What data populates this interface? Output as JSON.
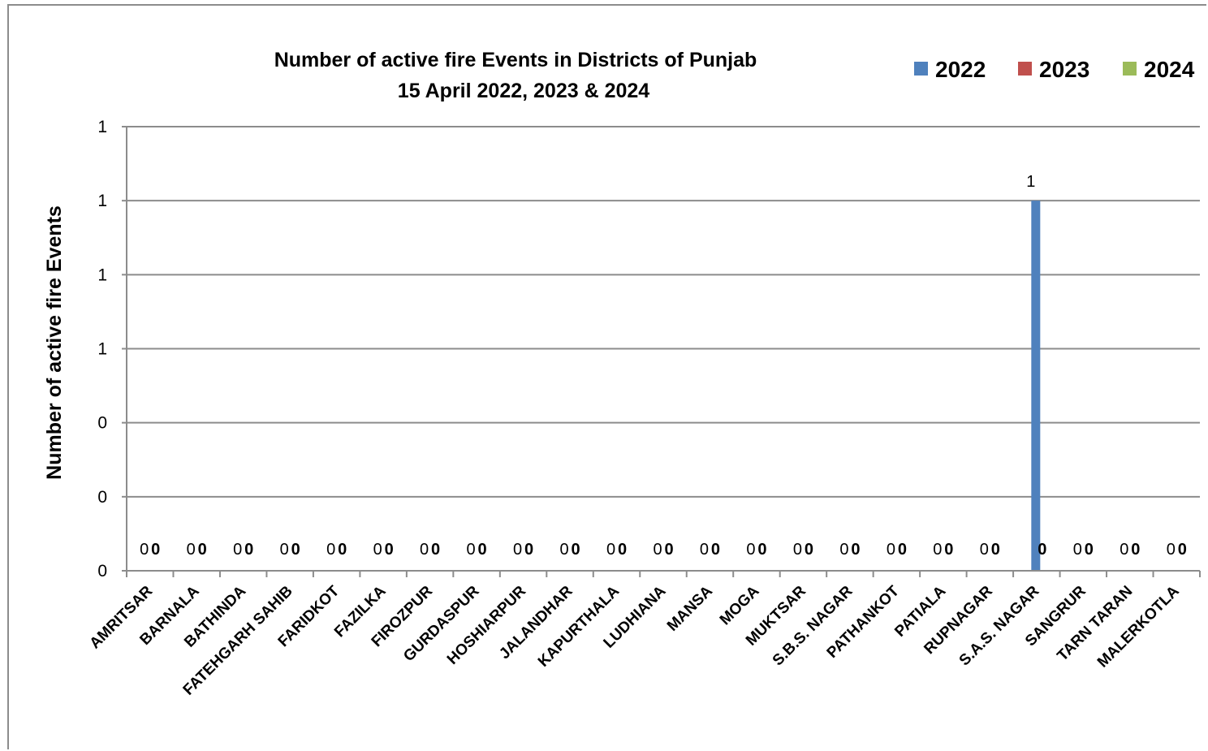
{
  "chart_data": {
    "type": "bar",
    "title": "Number of active fire Events in Districts of Punjab",
    "subtitle": "15 April 2022, 2023 & 2024",
    "ylabel": "Number of active fire Events",
    "xlabel": "",
    "y_tick_labels": [
      "0",
      "0",
      "0",
      "1",
      "1",
      "1",
      "1"
    ],
    "ylim": [
      0,
      1.2
    ],
    "grid": true,
    "legend_position": "top-right",
    "categories": [
      "AMRITSAR",
      "BARNALA",
      "BATHINDA",
      "FATEHGARH SAHIB",
      "FARIDKOT",
      "FAZILKA",
      "FIROZPUR",
      "GURDASPUR",
      "HOSHIARPUR",
      "JALANDHAR",
      "KAPURTHALA",
      "LUDHIANA",
      "MANSA",
      "MOGA",
      "MUKTSAR",
      "S.B.S. NAGAR",
      "PATHANKOT",
      "PATIALA",
      "RUPNAGAR",
      "S.A.S. NAGAR",
      "SANGRUR",
      "TARN TARAN",
      "MALERKOTLA"
    ],
    "series": [
      {
        "name": "2022",
        "color": "#4f81bd",
        "values": [
          0,
          0,
          0,
          0,
          0,
          0,
          0,
          0,
          0,
          0,
          0,
          0,
          0,
          0,
          0,
          0,
          0,
          0,
          0,
          1,
          0,
          0,
          0
        ]
      },
      {
        "name": "2023",
        "color": "#c0504d",
        "values": [
          0,
          0,
          0,
          0,
          0,
          0,
          0,
          0,
          0,
          0,
          0,
          0,
          0,
          0,
          0,
          0,
          0,
          0,
          0,
          0,
          0,
          0,
          0
        ]
      },
      {
        "name": "2024",
        "color": "#9bbb59",
        "values": [
          0,
          0,
          0,
          0,
          0,
          0,
          0,
          0,
          0,
          0,
          0,
          0,
          0,
          0,
          0,
          0,
          0,
          0,
          0,
          0,
          0,
          0,
          0
        ]
      }
    ]
  }
}
